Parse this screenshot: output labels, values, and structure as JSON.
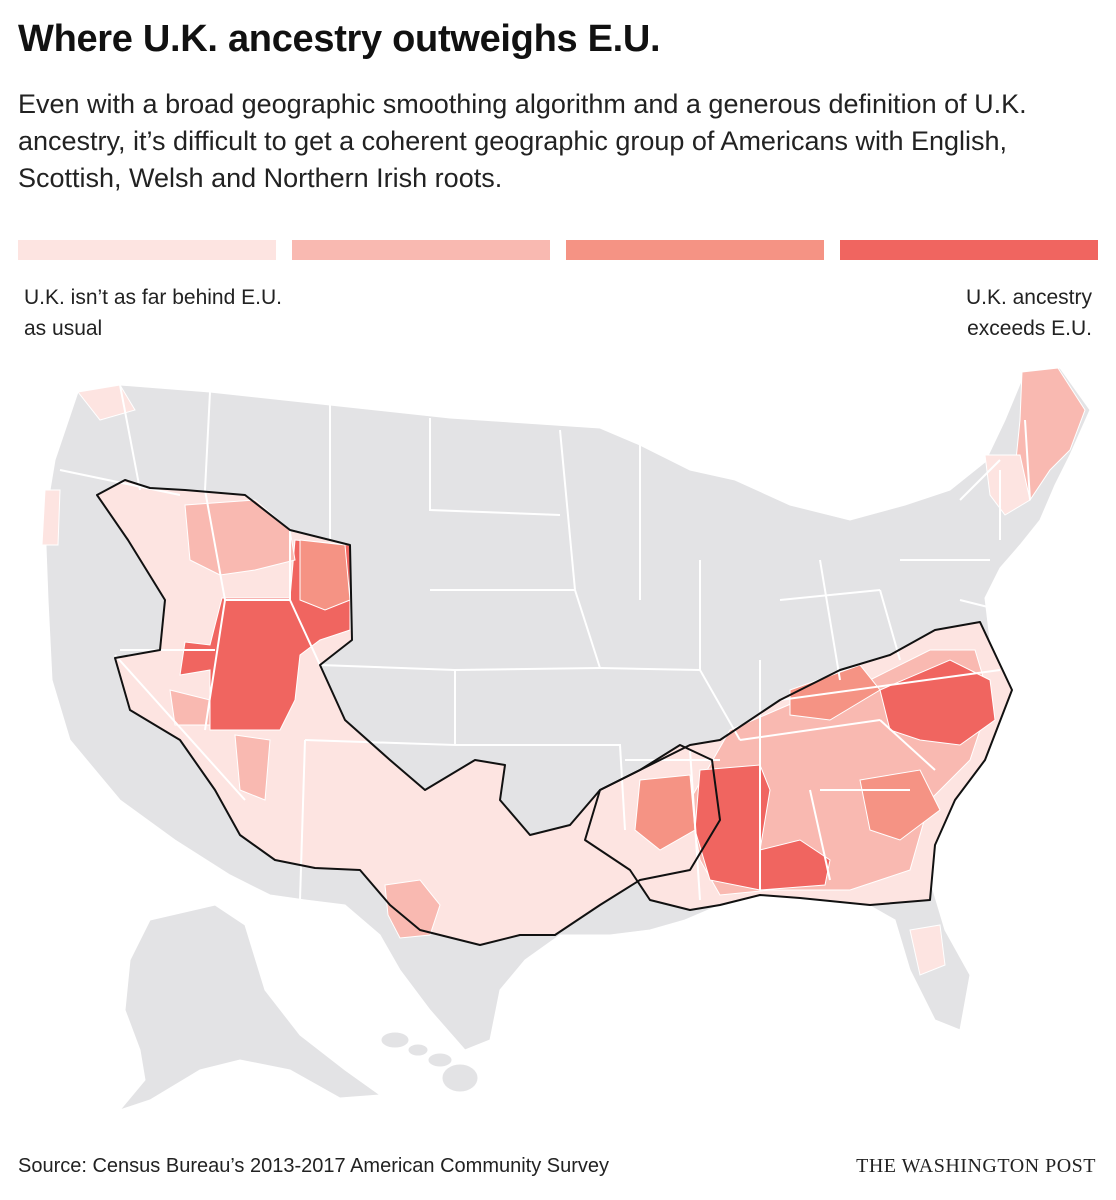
{
  "title": "Where U.K. ancestry outweighs E.U.",
  "subtitle": "Even with a broad geographic smoothing algorithm and a generous definition of U.K. ancestry, it’s difficult to get a coherent geographic group of Americans with English, Scottish, Welsh and Northern Irish roots.",
  "legend": {
    "low_label": "U.K. isn’t as far behind E.U. as usual",
    "high_label": "U.K. ancestry exceeds E.U.",
    "colors": [
      "#fde4e1",
      "#f9b9b1",
      "#f59384",
      "#f06560"
    ]
  },
  "map": {
    "base_color": "#e3e3e5",
    "border_color": "#ffffff",
    "outline_color": "#111111"
  },
  "footer": {
    "source": "Source: Census Bureau’s 2013-2017 American Community Survey",
    "credit": "THE WASHINGTON POST"
  }
}
